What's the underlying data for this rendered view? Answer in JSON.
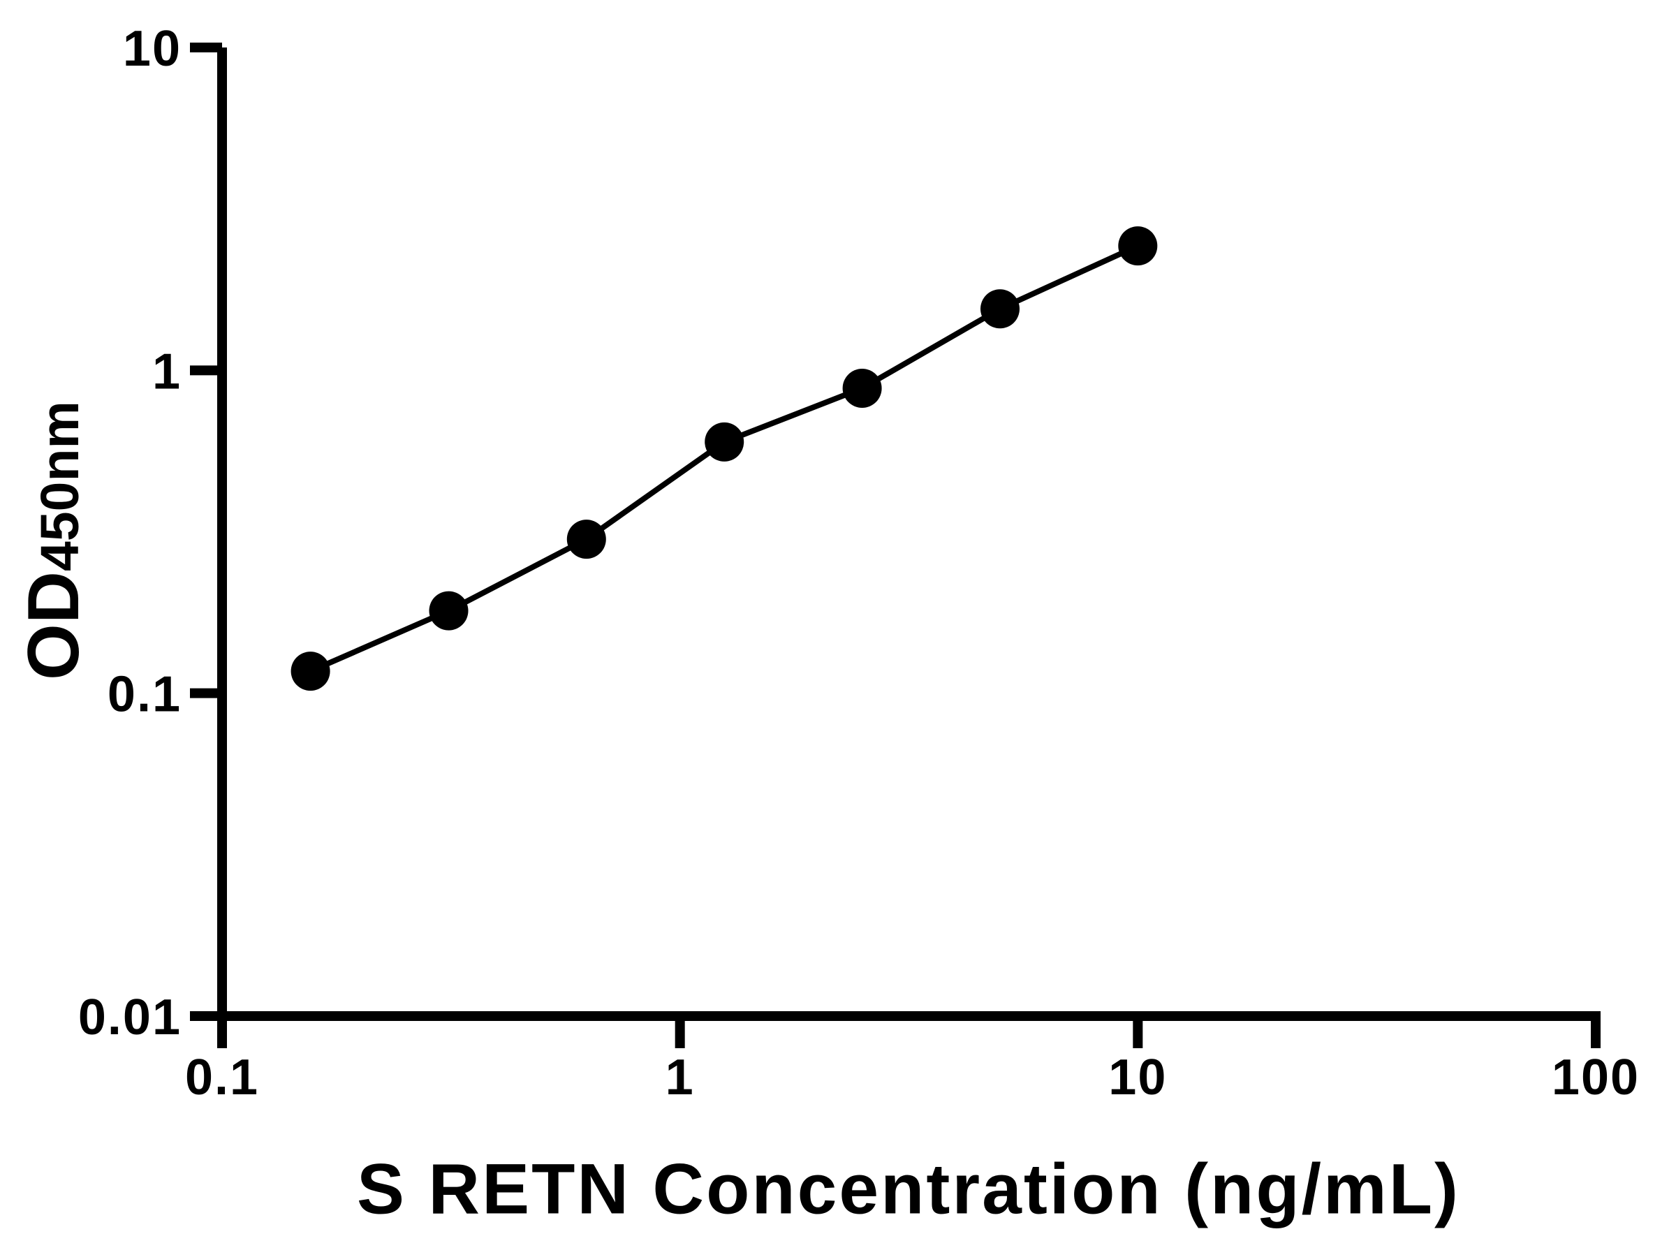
{
  "figure": {
    "background_color": "#ffffff",
    "foreground_color": "#000000"
  },
  "chart_data": {
    "type": "scatter",
    "title": "",
    "xlabel": "S RETN Concentration (ng/mL)",
    "ylabel": "OD450nm",
    "ylabel_main": "OD",
    "ylabel_sub": "450nm",
    "x_scale": "log",
    "y_scale": "log",
    "xlim": [
      0.1,
      100
    ],
    "ylim": [
      0.01,
      10
    ],
    "x_tick_labels": [
      "0.1",
      "1",
      "10",
      "100"
    ],
    "y_tick_labels": [
      "0.01",
      "0.1",
      "1",
      "10"
    ],
    "grid": false,
    "legend_position": "none",
    "series": [
      {
        "marker": "circle",
        "line": "solid",
        "color": "#000000",
        "x": [
          0.156,
          0.3125,
          0.625,
          1.25,
          2.5,
          5,
          10
        ],
        "y": [
          0.117,
          0.18,
          0.3,
          0.6,
          0.88,
          1.55,
          2.43
        ]
      }
    ]
  }
}
